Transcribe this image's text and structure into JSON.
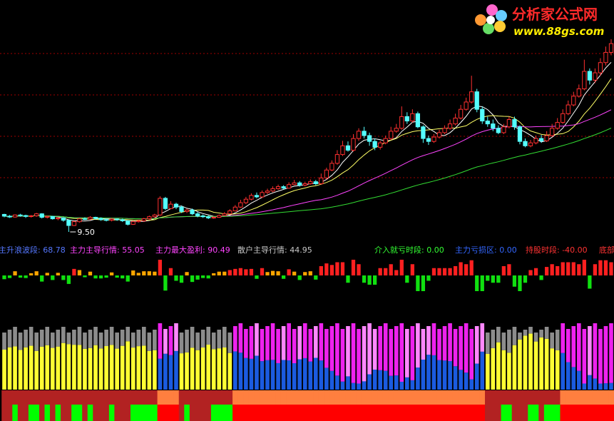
{
  "watermark": {
    "title": "分析家公式网",
    "url": "www.88gs.com"
  },
  "colors": {
    "background": "#000000",
    "up_candle": "#ff3030",
    "down_candle": "#54ffff",
    "ma_white": "#ffffff",
    "ma_yellow": "#ffff66",
    "ma_magenta": "#ff44ff",
    "ma_green": "#33dd33",
    "grid": "#a00000",
    "hist_red": "#ff2020",
    "hist_orange": "#ffa500",
    "hist_green": "#10e010",
    "bar_gray": "#8c8c8c",
    "bar_yellow": "#ffff33",
    "bar_magenta": "#ee22ee",
    "bar_blue": "#1b5be0",
    "bar_pink": "#ff88ff",
    "bar_lightblue": "#88aaff",
    "band_red": "#ff0000",
    "band_darkred": "#b22222",
    "band_green": "#00ff00",
    "band_orange": "#ff7f3f"
  },
  "chart_data": {
    "type": "candlestick",
    "low_marker": "9.50",
    "candles": [
      [
        10.1,
        10.04,
        10.12,
        10.0
      ],
      [
        10.04,
        10.01,
        10.08,
        9.98
      ],
      [
        10.01,
        10.08,
        10.1,
        9.99
      ],
      [
        10.08,
        10.06,
        10.12,
        10.02
      ],
      [
        10.06,
        10.03,
        10.09,
        9.98
      ],
      [
        10.03,
        10.05,
        10.08,
        9.99
      ],
      [
        10.05,
        10.12,
        10.15,
        10.02
      ],
      [
        10.12,
        10.0,
        10.14,
        9.96
      ],
      [
        10.0,
        10.03,
        10.06,
        9.96
      ],
      [
        10.03,
        9.95,
        10.05,
        9.92
      ],
      [
        9.95,
        9.98,
        10.0,
        9.9
      ],
      [
        9.98,
        9.9,
        10.0,
        9.85
      ],
      [
        9.9,
        9.72,
        9.92,
        9.5
      ],
      [
        9.72,
        9.85,
        9.88,
        9.7
      ],
      [
        9.85,
        9.95,
        9.98,
        9.82
      ],
      [
        9.95,
        9.94,
        10.0,
        9.9
      ],
      [
        9.94,
        10.0,
        10.04,
        9.9
      ],
      [
        10.0,
        9.96,
        10.02,
        9.92
      ],
      [
        9.96,
        9.92,
        10.0,
        9.88
      ],
      [
        9.92,
        9.9,
        9.96,
        9.86
      ],
      [
        9.9,
        9.94,
        9.98,
        9.86
      ],
      [
        9.94,
        9.92,
        9.96,
        9.88
      ],
      [
        9.92,
        9.88,
        9.95,
        9.84
      ],
      [
        9.88,
        9.76,
        9.9,
        9.72
      ],
      [
        9.76,
        9.85,
        9.88,
        9.74
      ],
      [
        9.85,
        9.88,
        9.92,
        9.82
      ],
      [
        9.88,
        9.95,
        9.98,
        9.84
      ],
      [
        9.95,
        10.02,
        10.06,
        9.92
      ],
      [
        10.02,
        10.08,
        10.12,
        9.98
      ],
      [
        10.08,
        10.65,
        10.72,
        10.05
      ],
      [
        10.65,
        10.3,
        10.7,
        10.25
      ],
      [
        10.3,
        10.45,
        10.55,
        10.28
      ],
      [
        10.45,
        10.35,
        10.5,
        10.28
      ],
      [
        10.35,
        10.2,
        10.4,
        10.15
      ],
      [
        10.2,
        10.25,
        10.3,
        10.15
      ],
      [
        10.25,
        10.12,
        10.3,
        10.08
      ],
      [
        10.12,
        10.05,
        10.18,
        10.0
      ],
      [
        10.05,
        10.02,
        10.1,
        9.98
      ],
      [
        10.02,
        9.98,
        10.06,
        9.94
      ],
      [
        9.98,
        10.0,
        10.04,
        9.95
      ],
      [
        10.0,
        10.06,
        10.1,
        9.98
      ],
      [
        10.06,
        10.12,
        10.18,
        10.05
      ],
      [
        10.12,
        10.22,
        10.28,
        10.1
      ],
      [
        10.22,
        10.35,
        10.42,
        10.2
      ],
      [
        10.35,
        10.5,
        10.6,
        10.32
      ],
      [
        10.5,
        10.62,
        10.7,
        10.45
      ],
      [
        10.62,
        10.75,
        10.82,
        10.58
      ],
      [
        10.75,
        10.7,
        10.85,
        10.65
      ],
      [
        10.7,
        10.85,
        10.92,
        10.66
      ],
      [
        10.85,
        10.9,
        10.98,
        10.8
      ],
      [
        10.9,
        10.98,
        11.06,
        10.86
      ],
      [
        10.98,
        11.05,
        11.12,
        10.94
      ],
      [
        11.05,
        11.0,
        11.1,
        10.96
      ],
      [
        11.0,
        11.12,
        11.2,
        10.98
      ],
      [
        11.12,
        11.18,
        11.28,
        11.1
      ],
      [
        11.18,
        11.1,
        11.24,
        11.05
      ],
      [
        11.1,
        11.15,
        11.22,
        11.06
      ],
      [
        11.15,
        11.22,
        11.3,
        11.12
      ],
      [
        11.22,
        11.15,
        11.28,
        11.1
      ],
      [
        11.15,
        11.35,
        11.5,
        11.12
      ],
      [
        11.35,
        11.62,
        11.7,
        11.3
      ],
      [
        11.62,
        11.85,
        11.95,
        11.58
      ],
      [
        11.85,
        12.15,
        12.3,
        11.8
      ],
      [
        12.15,
        12.45,
        12.62,
        12.1
      ],
      [
        12.45,
        12.3,
        12.6,
        12.25
      ],
      [
        12.3,
        12.7,
        12.85,
        12.25
      ],
      [
        12.7,
        12.95,
        13.05,
        12.62
      ],
      [
        12.95,
        12.8,
        13.1,
        12.7
      ],
      [
        12.8,
        12.6,
        12.9,
        12.45
      ],
      [
        12.6,
        12.4,
        12.7,
        12.3
      ],
      [
        12.4,
        12.55,
        12.62,
        12.32
      ],
      [
        12.55,
        12.7,
        12.8,
        12.5
      ],
      [
        12.7,
        12.95,
        13.1,
        12.65
      ],
      [
        12.95,
        13.05,
        13.2,
        12.9
      ],
      [
        13.05,
        13.45,
        13.8,
        13.0
      ],
      [
        13.45,
        13.3,
        13.6,
        13.2
      ],
      [
        13.3,
        13.55,
        13.7,
        13.25
      ],
      [
        13.55,
        13.1,
        13.62,
        13.05
      ],
      [
        13.1,
        12.7,
        13.15,
        12.55
      ],
      [
        12.7,
        12.6,
        12.8,
        12.48
      ],
      [
        12.6,
        12.75,
        12.85,
        12.55
      ],
      [
        12.75,
        12.9,
        13.0,
        12.7
      ],
      [
        12.9,
        13.05,
        13.15,
        12.85
      ],
      [
        13.05,
        13.2,
        13.35,
        13.0
      ],
      [
        13.2,
        13.4,
        13.55,
        13.15
      ],
      [
        13.4,
        13.7,
        13.85,
        13.35
      ],
      [
        13.7,
        13.95,
        14.1,
        13.65
      ],
      [
        13.95,
        14.3,
        14.85,
        13.9
      ],
      [
        14.3,
        13.7,
        14.4,
        13.6
      ],
      [
        13.7,
        13.3,
        13.8,
        13.2
      ],
      [
        13.3,
        13.2,
        13.45,
        13.1
      ],
      [
        13.2,
        13.05,
        13.35,
        12.95
      ],
      [
        13.05,
        12.9,
        13.15,
        12.85
      ],
      [
        12.9,
        13.1,
        13.2,
        12.85
      ],
      [
        13.1,
        13.35,
        13.45,
        13.05
      ],
      [
        13.35,
        13.1,
        13.45,
        13.0
      ],
      [
        13.1,
        12.6,
        13.15,
        12.5
      ],
      [
        12.6,
        12.45,
        12.7,
        12.4
      ],
      [
        12.45,
        12.55,
        12.65,
        12.4
      ],
      [
        12.55,
        12.7,
        12.8,
        12.5
      ],
      [
        12.7,
        12.62,
        12.82,
        12.55
      ],
      [
        12.62,
        12.8,
        12.95,
        12.58
      ],
      [
        12.8,
        13.05,
        13.2,
        12.75
      ],
      [
        13.05,
        13.25,
        13.4,
        13.0
      ],
      [
        13.25,
        13.55,
        13.7,
        13.2
      ],
      [
        13.55,
        13.85,
        14.0,
        13.5
      ],
      [
        13.85,
        14.15,
        14.3,
        13.8
      ],
      [
        14.15,
        14.4,
        14.55,
        14.1
      ],
      [
        14.4,
        15.0,
        15.4,
        14.35
      ],
      [
        15.0,
        14.7,
        15.1,
        14.55
      ],
      [
        14.7,
        14.95,
        15.1,
        14.6
      ],
      [
        14.95,
        15.3,
        15.45,
        14.85
      ],
      [
        15.3,
        15.65,
        15.85,
        15.2
      ],
      [
        15.65,
        15.95,
        16.1,
        15.55
      ]
    ],
    "indicators": [
      {
        "label": "主升浪波段",
        "value": "68.78",
        "label_color": "#5577ff",
        "value_color": "#5577ff"
      },
      {
        "label": "主力主导行情",
        "value": "55.05",
        "label_color": "#ff44ff",
        "value_color": "#ff44ff"
      },
      {
        "label": "主力最大盈利",
        "value": "90.49",
        "label_color": "#ff44ff",
        "value_color": "#ff44ff"
      },
      {
        "label": "散户主导行情",
        "value": "44.95",
        "label_color": "#c8c8c8",
        "value_color": "#c8c8c8"
      },
      {
        "label": "介入就亏时段",
        "value": "0.00",
        "label_color": "#33ff33",
        "value_color": "#33ff33"
      },
      {
        "label": "主力亏损区",
        "value": "0.00",
        "label_color": "#3366ff",
        "value_color": "#3366ff"
      },
      {
        "label": "持股时段",
        "value": "-40.00",
        "label_color": "#ff3333",
        "value_color": "#ff3333"
      },
      {
        "label": "底部",
        "value": "",
        "label_color": "#ff3333",
        "value_color": "#ff3333"
      }
    ]
  }
}
